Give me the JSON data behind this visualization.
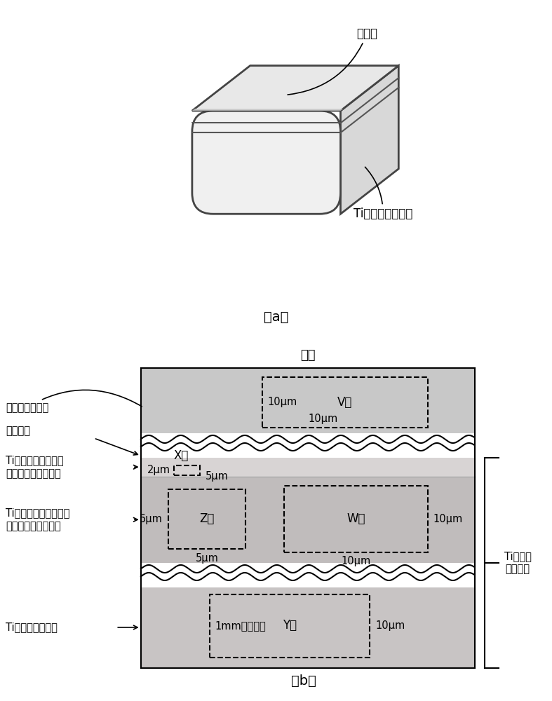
{
  "fig_width": 7.87,
  "fig_height": 10.0,
  "dpi": 100,
  "bg_color": "#ffffff",
  "label_a": "（a）",
  "label_b": "（b）",
  "fushe_mo": "熔射膜",
  "ti_base_label": "Ti基金属陶瓷基体",
  "surface": "表面",
  "hard_film": "硬质合金熔射膜",
  "interface": "界面位置",
  "outermost": "Ti基金属陶瓷最外层\n（结合相富集区域）",
  "near_surface": "Ti基金属陶瓷表面附近\n（结合相贫集区域）",
  "interior": "Ti基金属陶瓷内部",
  "ti_base_body": "Ti基金属\n陶瓷基体",
  "V_val": "V值",
  "W_val": "W值",
  "X_val": "X值",
  "Y_val": "Y值",
  "Z_val": "Z值",
  "dim_10um": "10μm",
  "dim_2um": "2μm",
  "dim_5um": "5μm",
  "dim_1mm": "1mm以上内部",
  "hard_film_color": "#c8c8c8",
  "outer_layer_color": "#d8d4d4",
  "inner_layer_color": "#c0bcbc",
  "bottom_color": "#c8c4c4",
  "wave_white": "#ffffff"
}
